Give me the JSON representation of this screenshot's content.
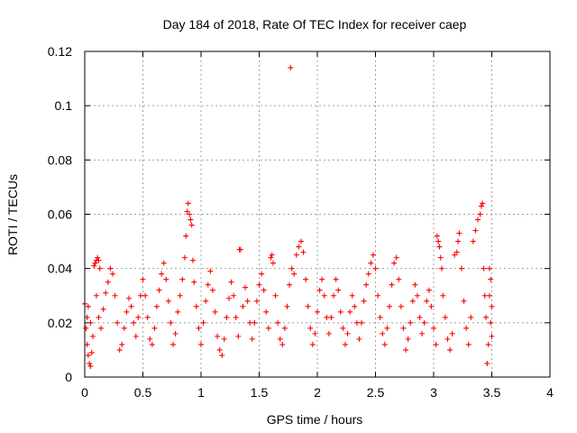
{
  "chart_data": {
    "type": "scatter",
    "title": "Day 184 of 2018, Rate Of TEC Index for receiver caep",
    "xlabel": "GPS time / hours",
    "ylabel": "ROTI / TECUs",
    "xlim": [
      0,
      4
    ],
    "ylim": [
      0,
      0.12
    ],
    "xticks": [
      "0",
      "0.5",
      "1",
      "1.5",
      "2",
      "2.5",
      "3",
      "3.5",
      "4"
    ],
    "yticks": [
      "0",
      "0.02",
      "0.04",
      "0.06",
      "0.08",
      "0.1",
      "0.12"
    ],
    "grid": true,
    "marker": "+",
    "color": "#ff0000",
    "series": [
      {
        "name": "ROTI",
        "points": [
          [
            0.0,
            0.027
          ],
          [
            0.01,
            0.018
          ],
          [
            0.02,
            0.012
          ],
          [
            0.03,
            0.008
          ],
          [
            0.04,
            0.005
          ],
          [
            0.05,
            0.004
          ],
          [
            0.06,
            0.009
          ],
          [
            0.02,
            0.022
          ],
          [
            0.03,
            0.026
          ],
          [
            0.05,
            0.02
          ],
          [
            0.07,
            0.015
          ],
          [
            0.08,
            0.041
          ],
          [
            0.09,
            0.042
          ],
          [
            0.1,
            0.043
          ],
          [
            0.11,
            0.044
          ],
          [
            0.12,
            0.043
          ],
          [
            0.13,
            0.04
          ],
          [
            0.1,
            0.03
          ],
          [
            0.12,
            0.022
          ],
          [
            0.14,
            0.018
          ],
          [
            0.16,
            0.025
          ],
          [
            0.18,
            0.031
          ],
          [
            0.2,
            0.035
          ],
          [
            0.22,
            0.04
          ],
          [
            0.24,
            0.038
          ],
          [
            0.26,
            0.03
          ],
          [
            0.28,
            0.02
          ],
          [
            0.3,
            0.01
          ],
          [
            0.32,
            0.012
          ],
          [
            0.34,
            0.018
          ],
          [
            0.36,
            0.024
          ],
          [
            0.38,
            0.029
          ],
          [
            0.4,
            0.026
          ],
          [
            0.42,
            0.02
          ],
          [
            0.44,
            0.015
          ],
          [
            0.46,
            0.022
          ],
          [
            0.48,
            0.03
          ],
          [
            0.5,
            0.036
          ],
          [
            0.52,
            0.03
          ],
          [
            0.54,
            0.022
          ],
          [
            0.56,
            0.014
          ],
          [
            0.58,
            0.012
          ],
          [
            0.6,
            0.018
          ],
          [
            0.62,
            0.026
          ],
          [
            0.64,
            0.032
          ],
          [
            0.66,
            0.038
          ],
          [
            0.68,
            0.042
          ],
          [
            0.7,
            0.036
          ],
          [
            0.72,
            0.028
          ],
          [
            0.74,
            0.02
          ],
          [
            0.76,
            0.012
          ],
          [
            0.78,
            0.016
          ],
          [
            0.8,
            0.024
          ],
          [
            0.82,
            0.03
          ],
          [
            0.84,
            0.036
          ],
          [
            0.86,
            0.044
          ],
          [
            0.87,
            0.052
          ],
          [
            0.88,
            0.061
          ],
          [
            0.89,
            0.064
          ],
          [
            0.9,
            0.06
          ],
          [
            0.91,
            0.058
          ],
          [
            0.92,
            0.056
          ],
          [
            0.93,
            0.043
          ],
          [
            0.94,
            0.035
          ],
          [
            0.96,
            0.026
          ],
          [
            0.98,
            0.018
          ],
          [
            1.0,
            0.012
          ],
          [
            1.02,
            0.02
          ],
          [
            1.04,
            0.028
          ],
          [
            1.06,
            0.034
          ],
          [
            1.08,
            0.039
          ],
          [
            1.1,
            0.032
          ],
          [
            1.12,
            0.024
          ],
          [
            1.14,
            0.015
          ],
          [
            1.16,
            0.01
          ],
          [
            1.18,
            0.008
          ],
          [
            1.2,
            0.014
          ],
          [
            1.22,
            0.022
          ],
          [
            1.24,
            0.029
          ],
          [
            1.26,
            0.035
          ],
          [
            1.28,
            0.03
          ],
          [
            1.3,
            0.022
          ],
          [
            1.32,
            0.015
          ],
          [
            1.33,
            0.047
          ],
          [
            1.34,
            0.047
          ],
          [
            1.36,
            0.026
          ],
          [
            1.38,
            0.033
          ],
          [
            1.4,
            0.028
          ],
          [
            1.42,
            0.02
          ],
          [
            1.44,
            0.014
          ],
          [
            1.46,
            0.02
          ],
          [
            1.48,
            0.028
          ],
          [
            1.5,
            0.034
          ],
          [
            1.52,
            0.038
          ],
          [
            1.54,
            0.032
          ],
          [
            1.56,
            0.024
          ],
          [
            1.58,
            0.018
          ],
          [
            1.6,
            0.044
          ],
          [
            1.61,
            0.045
          ],
          [
            1.62,
            0.042
          ],
          [
            1.64,
            0.03
          ],
          [
            1.66,
            0.02
          ],
          [
            1.68,
            0.014
          ],
          [
            1.7,
            0.012
          ],
          [
            1.72,
            0.018
          ],
          [
            1.74,
            0.026
          ],
          [
            1.76,
            0.034
          ],
          [
            1.77,
            0.114
          ],
          [
            1.78,
            0.04
          ],
          [
            1.8,
            0.038
          ],
          [
            1.82,
            0.045
          ],
          [
            1.84,
            0.048
          ],
          [
            1.86,
            0.05
          ],
          [
            1.88,
            0.046
          ],
          [
            1.9,
            0.036
          ],
          [
            1.92,
            0.026
          ],
          [
            1.94,
            0.018
          ],
          [
            1.96,
            0.012
          ],
          [
            1.98,
            0.016
          ],
          [
            2.0,
            0.024
          ],
          [
            2.02,
            0.032
          ],
          [
            2.04,
            0.036
          ],
          [
            2.06,
            0.03
          ],
          [
            2.08,
            0.022
          ],
          [
            2.1,
            0.016
          ],
          [
            2.12,
            0.022
          ],
          [
            2.14,
            0.03
          ],
          [
            2.16,
            0.036
          ],
          [
            2.18,
            0.032
          ],
          [
            2.2,
            0.024
          ],
          [
            2.22,
            0.018
          ],
          [
            2.24,
            0.012
          ],
          [
            2.26,
            0.016
          ],
          [
            2.28,
            0.024
          ],
          [
            2.3,
            0.03
          ],
          [
            2.32,
            0.026
          ],
          [
            2.34,
            0.02
          ],
          [
            2.36,
            0.014
          ],
          [
            2.38,
            0.02
          ],
          [
            2.4,
            0.028
          ],
          [
            2.42,
            0.034
          ],
          [
            2.44,
            0.038
          ],
          [
            2.46,
            0.042
          ],
          [
            2.48,
            0.045
          ],
          [
            2.5,
            0.04
          ],
          [
            2.52,
            0.03
          ],
          [
            2.54,
            0.022
          ],
          [
            2.56,
            0.016
          ],
          [
            2.58,
            0.012
          ],
          [
            2.6,
            0.018
          ],
          [
            2.62,
            0.026
          ],
          [
            2.64,
            0.034
          ],
          [
            2.66,
            0.042
          ],
          [
            2.68,
            0.044
          ],
          [
            2.7,
            0.036
          ],
          [
            2.72,
            0.026
          ],
          [
            2.74,
            0.018
          ],
          [
            2.76,
            0.01
          ],
          [
            2.78,
            0.014
          ],
          [
            2.8,
            0.02
          ],
          [
            2.82,
            0.028
          ],
          [
            2.84,
            0.034
          ],
          [
            2.86,
            0.03
          ],
          [
            2.88,
            0.022
          ],
          [
            2.9,
            0.016
          ],
          [
            2.92,
            0.02
          ],
          [
            2.94,
            0.028
          ],
          [
            2.96,
            0.032
          ],
          [
            2.98,
            0.026
          ],
          [
            3.0,
            0.018
          ],
          [
            3.02,
            0.012
          ],
          [
            3.03,
            0.052
          ],
          [
            3.04,
            0.05
          ],
          [
            3.05,
            0.048
          ],
          [
            3.06,
            0.044
          ],
          [
            3.07,
            0.04
          ],
          [
            3.08,
            0.03
          ],
          [
            3.1,
            0.022
          ],
          [
            3.12,
            0.014
          ],
          [
            3.14,
            0.01
          ],
          [
            3.16,
            0.016
          ],
          [
            3.18,
            0.045
          ],
          [
            3.2,
            0.046
          ],
          [
            3.21,
            0.05
          ],
          [
            3.22,
            0.053
          ],
          [
            3.24,
            0.04
          ],
          [
            3.26,
            0.028
          ],
          [
            3.28,
            0.018
          ],
          [
            3.3,
            0.012
          ],
          [
            3.32,
            0.022
          ],
          [
            3.34,
            0.05
          ],
          [
            3.36,
            0.054
          ],
          [
            3.38,
            0.058
          ],
          [
            3.4,
            0.06
          ],
          [
            3.41,
            0.063
          ],
          [
            3.42,
            0.064
          ],
          [
            3.43,
            0.04
          ],
          [
            3.44,
            0.03
          ],
          [
            3.45,
            0.022
          ],
          [
            3.46,
            0.005
          ],
          [
            3.47,
            0.012
          ],
          [
            3.48,
            0.03
          ],
          [
            3.49,
            0.02
          ],
          [
            3.5,
            0.026
          ],
          [
            3.5,
            0.015
          ],
          [
            3.49,
            0.036
          ],
          [
            3.48,
            0.04
          ]
        ]
      }
    ]
  }
}
